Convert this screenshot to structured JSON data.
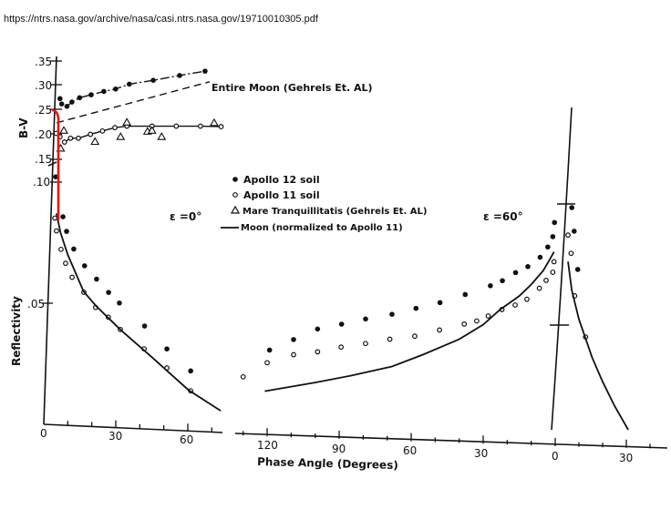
{
  "source_url": "https://ntrs.nasa.gov/archive/nasa/casi.ntrs.nasa.gov/19710010305.pdf",
  "chart_data": {
    "type": "scatter",
    "xlabel": "Phase Angle (Degrees)",
    "ylabels": {
      "bv": "B-V",
      "reflectivity": "Reflectivity"
    },
    "bv_ticks": [
      ".35",
      ".30",
      ".25",
      ".20",
      ".15",
      ".10"
    ],
    "reflectivity_ticks": [
      ".05"
    ],
    "x_ticks_e0": [
      "0",
      "30",
      "60"
    ],
    "x_ticks_e60": [
      "120",
      "90",
      "60",
      "30",
      "0",
      "30"
    ],
    "panel_labels": {
      "e0": "ε =0°",
      "e60": "ε =60°"
    },
    "entire_moon_label": "Entire Moon (Gehrels Et. AL)",
    "legend": [
      {
        "marker": "filled-circle",
        "label": "Apollo 12 soil"
      },
      {
        "marker": "open-circle",
        "label": "Apollo 11 soil"
      },
      {
        "marker": "triangle",
        "label": "Mare Tranquillitatis (Gehrels Et. AL)"
      },
      {
        "marker": "line",
        "label": "Moon (normalized to Apollo 11)"
      }
    ],
    "highlight_color": "#e8180c",
    "series": [
      {
        "name": "Apollo 12 soil",
        "quantity": "bv",
        "panel": "e0",
        "marker": "filled-circle",
        "x": [
          2.3,
          4.1,
          4.8,
          7,
          9.1,
          12.3,
          17.1,
          22.4,
          27.3,
          33,
          43,
          54,
          64.6
        ],
        "y": [
          0.11,
          0.272,
          0.261,
          0.256,
          0.265,
          0.274,
          0.28,
          0.287,
          0.292,
          0.302,
          0.31,
          0.32,
          0.329
        ]
      },
      {
        "name": "Apollo 11 soil",
        "quantity": "bv",
        "panel": "e0",
        "marker": "open-circle",
        "x": [
          2.5,
          4.1,
          6,
          8.5,
          11.8,
          16.8,
          21.8,
          27,
          32,
          42.5,
          52.6,
          62.7,
          71.3
        ],
        "y": [
          0.2,
          0.193,
          0.182,
          0.19,
          0.19,
          0.198,
          0.205,
          0.212,
          0.215,
          0.215,
          0.215,
          0.215,
          0.214
        ]
      },
      {
        "name": "Mare Tranquillitatis (Gehrels Et. AL)",
        "quantity": "bv",
        "panel": "e0",
        "marker": "triangle",
        "x": [
          5.7,
          4.4,
          18.7,
          29.4,
          32,
          40.6,
          42.5,
          46.5,
          68.4
        ],
        "y": [
          0.206,
          0.169,
          0.183,
          0.193,
          0.223,
          0.204,
          0.206,
          0.193,
          0.222
        ]
      },
      {
        "name": "Entire Moon (Gehrels Et. AL)",
        "quantity": "bv",
        "panel": "e0",
        "marker": "dashed-line",
        "x": [
          2.7,
          66.5
        ],
        "y": [
          0.222,
          0.307
        ]
      },
      {
        "name": "Apollo 12 soil",
        "quantity": "reflectivity",
        "panel": "e0",
        "marker": "filled-circle",
        "x": [
          8,
          9.5,
          12.5,
          17,
          22,
          27,
          31.5,
          42,
          51.3,
          61.2
        ],
        "y": [
          0.0867,
          0.0807,
          0.0735,
          0.0667,
          0.0614,
          0.0561,
          0.0519,
          0.0428,
          0.0337,
          0.025
        ]
      },
      {
        "name": "Apollo 11 soil",
        "quantity": "reflectivity",
        "panel": "e0",
        "marker": "open-circle",
        "x": [
          4.6,
          5.3,
          7.2,
          9.1,
          11.8,
          16.7,
          21.6,
          26.9,
          31.9,
          41.8,
          51.3,
          61.2
        ],
        "y": [
          0.086,
          0.0807,
          0.0731,
          0.0674,
          0.0617,
          0.0557,
          0.0496,
          0.0458,
          0.0409,
          0.0333,
          0.0258,
          0.0167
        ]
      },
      {
        "name": "Moon (normalized to Apollo 11)",
        "quantity": "reflectivity",
        "panel": "e0",
        "marker": "line",
        "x": [
          5.3,
          7,
          10,
          16.6,
          22,
          32.3,
          45,
          60.3,
          73.7
        ],
        "y": [
          0.088,
          0.08,
          0.071,
          0.056,
          0.05,
          0.0405,
          0.03,
          0.017,
          0.009
        ]
      },
      {
        "name": "Apollo 12 soil",
        "quantity": "reflectivity",
        "panel": "e60_before_0",
        "marker": "filled-circle",
        "x": [
          119,
          109,
          99,
          89,
          79,
          68,
          58,
          48,
          37.5,
          27,
          22,
          16.5,
          11.4,
          6.3,
          3.1,
          1,
          0.3
        ],
        "y": [
          0.0282,
          0.033,
          0.0378,
          0.0402,
          0.0428,
          0.0452,
          0.0481,
          0.0509,
          0.0547,
          0.0588,
          0.0611,
          0.0647,
          0.0674,
          0.0715,
          0.0759,
          0.0803,
          0.0862
        ]
      },
      {
        "name": "Apollo 11 soil",
        "quantity": "reflectivity",
        "panel": "e60_before_0",
        "marker": "open-circle",
        "x": [
          130,
          120,
          109,
          99,
          89.2,
          79,
          68.9,
          58.5,
          48.2,
          37.9,
          32.7,
          27.9,
          22.2,
          16.7,
          11.8,
          6.6,
          3.8,
          1,
          0.5
        ],
        "y": [
          0.0166,
          0.0229,
          0.0267,
          0.0283,
          0.0307,
          0.0326,
          0.0348,
          0.0365,
          0.0395,
          0.0424,
          0.0439,
          0.0462,
          0.0491,
          0.0512,
          0.0538,
          0.0586,
          0.062,
          0.0655,
          0.0699
        ]
      },
      {
        "name": "Moon (normalized to Apollo 11)",
        "quantity": "reflectivity",
        "panel": "e60_before_0",
        "marker": "line",
        "x": [
          121,
          100,
          85,
          68,
          55,
          40,
          30,
          23,
          15,
          10,
          5,
          2.7,
          0.5
        ],
        "y": [
          0.011,
          0.0155,
          0.019,
          0.0235,
          0.029,
          0.036,
          0.0425,
          0.049,
          0.055,
          0.06,
          0.066,
          0.07,
          0.074
        ]
      },
      {
        "name": "Apollo 12 soil",
        "quantity": "reflectivity",
        "panel": "e60_after_0",
        "marker": "filled-circle",
        "x": [
          7,
          8,
          9.5
        ],
        "y": [
          0.0924,
          0.0826,
          0.0667
        ]
      },
      {
        "name": "Apollo 11 soil",
        "quantity": "reflectivity",
        "panel": "e60_after_0",
        "marker": "open-circle",
        "x": [
          5.4,
          6.7,
          8.2,
          12.8
        ],
        "y": [
          0.081,
          0.0734,
          0.0557,
          0.0386
        ]
      },
      {
        "name": "Moon (normalized to Apollo 11)",
        "quantity": "reflectivity",
        "panel": "e60_after_0",
        "marker": "line",
        "x": [
          5.4,
          7,
          10,
          15.6,
          20,
          25,
          30.8
        ],
        "y": [
          0.07,
          0.058,
          0.046,
          0.03,
          0.02,
          0.01,
          0.0
        ]
      }
    ]
  }
}
